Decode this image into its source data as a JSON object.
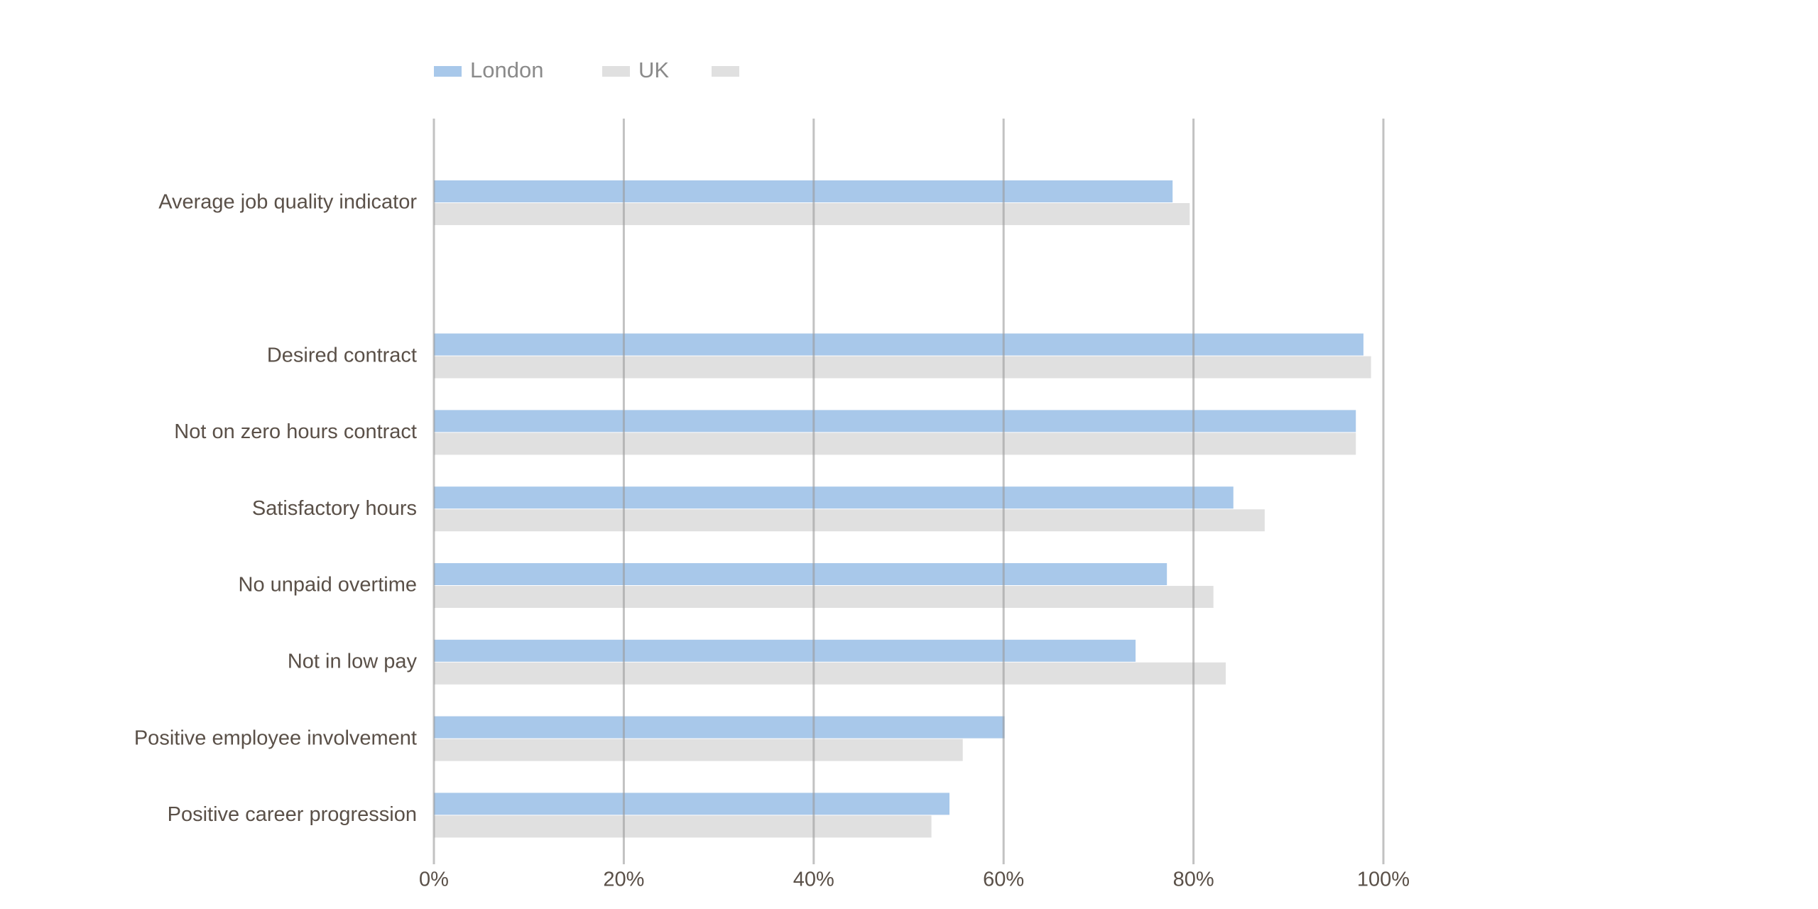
{
  "chart_data": {
    "type": "barh",
    "categories": [
      "Average job quality indicator",
      null,
      "Desired contract",
      "Not on zero hours contract",
      "Satisfactory hours",
      "No unpaid overtime",
      "Not in low pay",
      "Positive employee involvement",
      "Positive career progression"
    ],
    "series": [
      {
        "name": "London",
        "color": "#a8c8ea",
        "values": [
          77.8,
          null,
          97.9,
          97.1,
          84.2,
          77.2,
          73.9,
          60.1,
          54.3
        ]
      },
      {
        "name": "UK",
        "color": "#e0e0e0",
        "values": [
          79.6,
          null,
          98.7,
          97.1,
          87.5,
          82.1,
          83.4,
          55.7,
          52.4
        ]
      }
    ],
    "xlim": [
      0,
      100
    ],
    "xticks": [
      {
        "value": 0,
        "label": "0%"
      },
      {
        "value": 20,
        "label": "20%"
      },
      {
        "value": 40,
        "label": "40%"
      },
      {
        "value": 60,
        "label": "60%"
      },
      {
        "value": 80,
        "label": "80%"
      },
      {
        "value": 100,
        "label": "100%"
      }
    ],
    "grid": true,
    "legend": "top"
  }
}
